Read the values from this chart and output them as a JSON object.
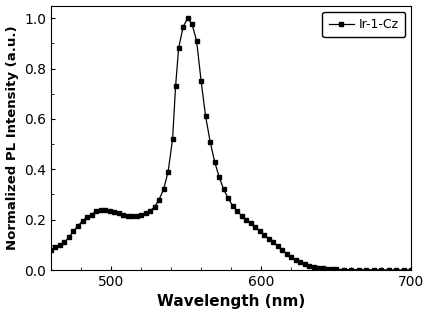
{
  "wavelengths": [
    460,
    463,
    466,
    469,
    472,
    475,
    478,
    481,
    484,
    487,
    490,
    493,
    496,
    499,
    502,
    505,
    508,
    511,
    514,
    517,
    520,
    523,
    526,
    529,
    532,
    535,
    538,
    541,
    543,
    545,
    548,
    551,
    554,
    557,
    560,
    563,
    566,
    569,
    572,
    575,
    578,
    581,
    584,
    587,
    590,
    593,
    596,
    599,
    602,
    605,
    608,
    611,
    614,
    617,
    620,
    623,
    626,
    629,
    632,
    635,
    638,
    641,
    644,
    647,
    650,
    655,
    660,
    665,
    670,
    675,
    680,
    685,
    690,
    695,
    700
  ],
  "intensities": [
    0.08,
    0.09,
    0.1,
    0.11,
    0.13,
    0.155,
    0.175,
    0.195,
    0.21,
    0.22,
    0.235,
    0.24,
    0.24,
    0.235,
    0.23,
    0.225,
    0.22,
    0.215,
    0.215,
    0.215,
    0.22,
    0.225,
    0.235,
    0.25,
    0.28,
    0.32,
    0.39,
    0.52,
    0.73,
    0.88,
    0.965,
    1.0,
    0.975,
    0.91,
    0.75,
    0.61,
    0.51,
    0.43,
    0.37,
    0.32,
    0.285,
    0.255,
    0.235,
    0.215,
    0.2,
    0.185,
    0.17,
    0.155,
    0.14,
    0.125,
    0.11,
    0.095,
    0.08,
    0.065,
    0.052,
    0.04,
    0.03,
    0.022,
    0.016,
    0.012,
    0.009,
    0.007,
    0.005,
    0.004,
    0.003,
    0.002,
    0.0015,
    0.001,
    0.001,
    0.001,
    0.0005,
    0.0005,
    0.0,
    0.0,
    0.0
  ],
  "xlabel": "Wavelength (nm)",
  "ylabel": "Normalized PL Intensity (a.u.)",
  "xlim": [
    460,
    700
  ],
  "ylim": [
    0.0,
    1.05
  ],
  "xticks": [
    500,
    600,
    700
  ],
  "yticks": [
    0.0,
    0.2,
    0.4,
    0.6,
    0.8,
    1.0
  ],
  "legend_label": "Ir-1-Cz",
  "line_color": "#000000",
  "marker": "s",
  "marker_size": 3.5,
  "background_color": "#ffffff",
  "label_fontsize": 11,
  "tick_fontsize": 10,
  "legend_fontsize": 9
}
